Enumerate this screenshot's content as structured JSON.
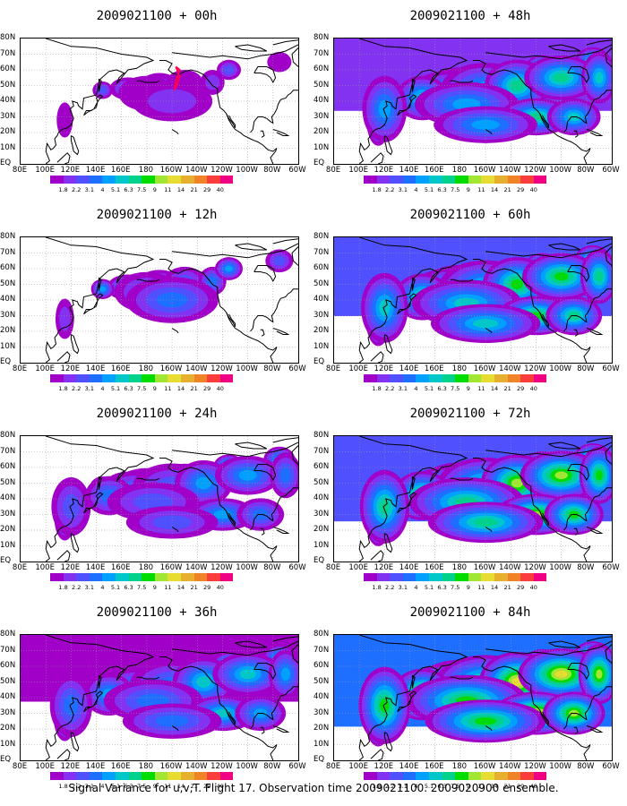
{
  "panels": [
    {
      "id": "p00",
      "title": "2009021100 + 00h",
      "col": 0,
      "row": 0,
      "intensity": 0.25
    },
    {
      "id": "p12",
      "title": "2009021100 + 12h",
      "col": 0,
      "row": 1,
      "intensity": 0.4
    },
    {
      "id": "p24",
      "title": "2009021100 + 24h",
      "col": 0,
      "row": 2,
      "intensity": 0.55
    },
    {
      "id": "p36",
      "title": "2009021100 + 36h",
      "col": 0,
      "row": 3,
      "intensity": 0.65
    },
    {
      "id": "p48",
      "title": "2009021100 + 48h",
      "col": 1,
      "row": 0,
      "intensity": 0.72
    },
    {
      "id": "p60",
      "title": "2009021100 + 60h",
      "col": 1,
      "row": 1,
      "intensity": 0.8
    },
    {
      "id": "p72",
      "title": "2009021100 + 72h",
      "col": 1,
      "row": 2,
      "intensity": 0.88
    },
    {
      "id": "p84",
      "title": "2009021100 + 84h",
      "col": 1,
      "row": 3,
      "intensity": 0.96
    }
  ],
  "lat_labels": [
    "80N",
    "70N",
    "60N",
    "50N",
    "40N",
    "30N",
    "20N",
    "10N",
    "EQ"
  ],
  "lon_labels": [
    "80E",
    "100E",
    "120E",
    "140E",
    "160E",
    "180",
    "160W",
    "140W",
    "120W",
    "100W",
    "80W",
    "60W"
  ],
  "colorbar": {
    "labels": [
      "1.8",
      "2.2",
      "3.1",
      "4",
      "5.1",
      "6.3",
      "7.5",
      "9",
      "11",
      "14",
      "21",
      "29",
      "40"
    ],
    "colors": [
      "#a000c8",
      "#8232f0",
      "#5050ff",
      "#1e6eff",
      "#00a0ff",
      "#00c8c8",
      "#00d28c",
      "#00dc00",
      "#a0e632",
      "#e6dc32",
      "#e6af2d",
      "#f08228",
      "#fa3c3c",
      "#f00082"
    ]
  },
  "caption": "Signal Variance for u,v,T. Flight 17. Observation time 2009021100. 2009020900 ensemble."
}
